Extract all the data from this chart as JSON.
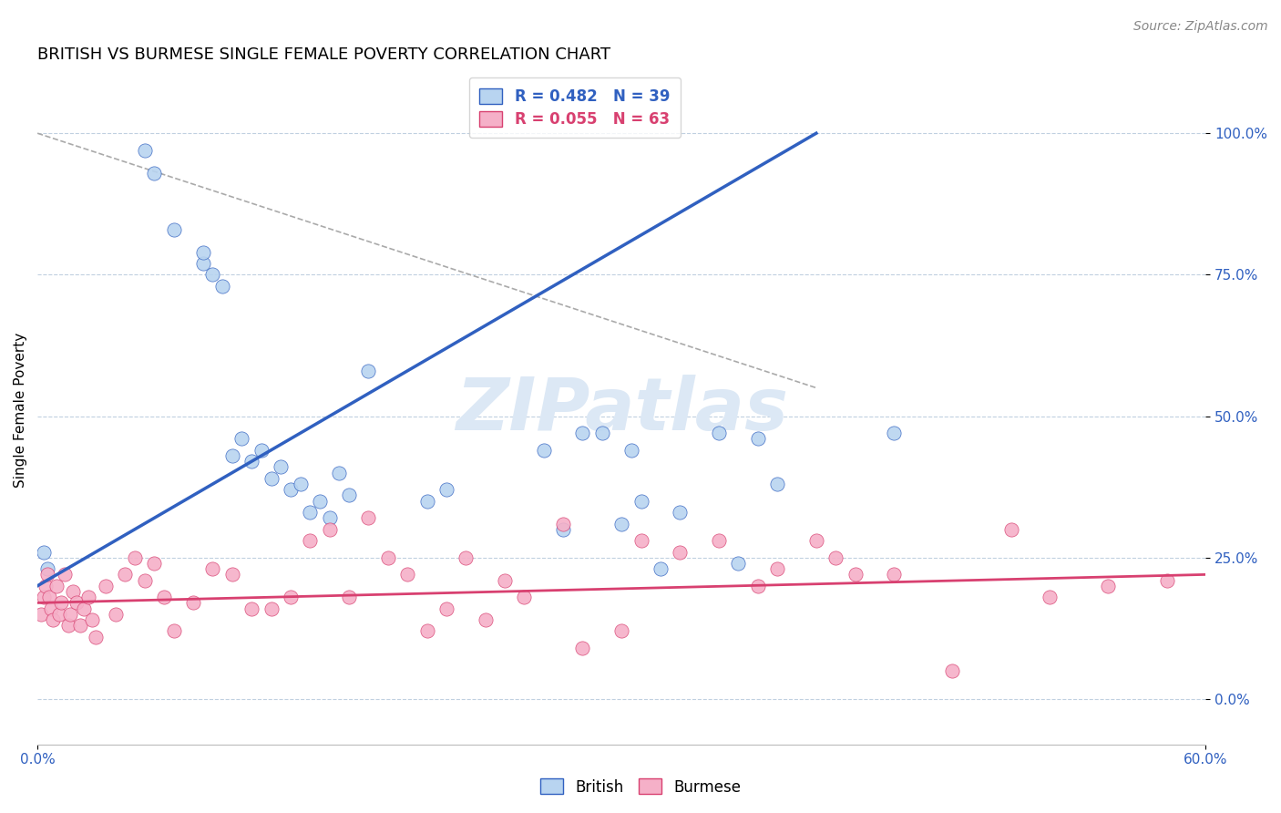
{
  "title": "BRITISH VS BURMESE SINGLE FEMALE POVERTY CORRELATION CHART",
  "source": "Source: ZipAtlas.com",
  "ylabel": "Single Female Poverty",
  "yticks_labels": [
    "0.0%",
    "25.0%",
    "50.0%",
    "75.0%",
    "100.0%"
  ],
  "ytick_vals": [
    0,
    25,
    50,
    75,
    100
  ],
  "xlim": [
    0,
    60
  ],
  "ylim": [
    -8,
    110
  ],
  "legend_british": "British",
  "legend_burmese": "Burmese",
  "R_british": 0.482,
  "N_british": 39,
  "R_burmese": 0.055,
  "N_burmese": 63,
  "color_british": "#b8d4f0",
  "color_burmese": "#f5b0c8",
  "line_british": "#3060c0",
  "line_burmese": "#d84070",
  "watermark_color": "#dce8f5",
  "british_x": [
    0.3,
    0.5,
    5.5,
    6.0,
    7.0,
    8.5,
    8.5,
    9.0,
    9.5,
    10.0,
    10.5,
    11.0,
    11.5,
    12.0,
    12.5,
    13.0,
    13.5,
    14.0,
    14.5,
    15.0,
    15.5,
    16.0,
    17.0,
    20.0,
    21.0,
    26.0,
    27.0,
    28.0,
    29.0,
    30.0,
    30.5,
    31.0,
    32.0,
    33.0,
    35.0,
    36.0,
    37.0,
    38.0,
    44.0
  ],
  "british_y": [
    26,
    23,
    97,
    93,
    83,
    77,
    79,
    75,
    73,
    43,
    46,
    42,
    44,
    39,
    41,
    37,
    38,
    33,
    35,
    32,
    40,
    36,
    58,
    35,
    37,
    44,
    30,
    47,
    47,
    31,
    44,
    35,
    23,
    33,
    47,
    24,
    46,
    38,
    47
  ],
  "burmese_x": [
    0.2,
    0.3,
    0.4,
    0.5,
    0.6,
    0.7,
    0.8,
    1.0,
    1.1,
    1.2,
    1.4,
    1.6,
    1.7,
    1.8,
    2.0,
    2.2,
    2.4,
    2.6,
    2.8,
    3.0,
    3.5,
    4.0,
    4.5,
    5.0,
    5.5,
    6.0,
    6.5,
    7.0,
    8.0,
    9.0,
    10.0,
    11.0,
    12.0,
    13.0,
    14.0,
    15.0,
    16.0,
    17.0,
    18.0,
    19.0,
    20.0,
    21.0,
    22.0,
    23.0,
    24.0,
    25.0,
    27.0,
    28.0,
    30.0,
    31.0,
    33.0,
    35.0,
    37.0,
    38.0,
    40.0,
    41.0,
    42.0,
    44.0,
    47.0,
    50.0,
    52.0,
    55.0,
    58.0
  ],
  "burmese_y": [
    15,
    18,
    20,
    22,
    18,
    16,
    14,
    20,
    15,
    17,
    22,
    13,
    15,
    19,
    17,
    13,
    16,
    18,
    14,
    11,
    20,
    15,
    22,
    25,
    21,
    24,
    18,
    12,
    17,
    23,
    22,
    16,
    16,
    18,
    28,
    30,
    18,
    32,
    25,
    22,
    12,
    16,
    25,
    14,
    21,
    18,
    31,
    9,
    12,
    28,
    26,
    28,
    20,
    23,
    28,
    25,
    22,
    22,
    5,
    30,
    18,
    20,
    21
  ],
  "background_color": "#ffffff",
  "grid_color": "#c0d0e0",
  "title_fontsize": 13,
  "axis_fontsize": 11,
  "legend_fontsize": 12,
  "source_fontsize": 10,
  "brit_reg_x0": 0,
  "brit_reg_y0": 20,
  "brit_reg_x1": 40,
  "brit_reg_y1": 100,
  "burm_reg_x0": 0,
  "burm_reg_y0": 17,
  "burm_reg_x1": 60,
  "burm_reg_y1": 22,
  "dash_x0": 0,
  "dash_y0": 100,
  "dash_x1": 40,
  "dash_y1": 55
}
